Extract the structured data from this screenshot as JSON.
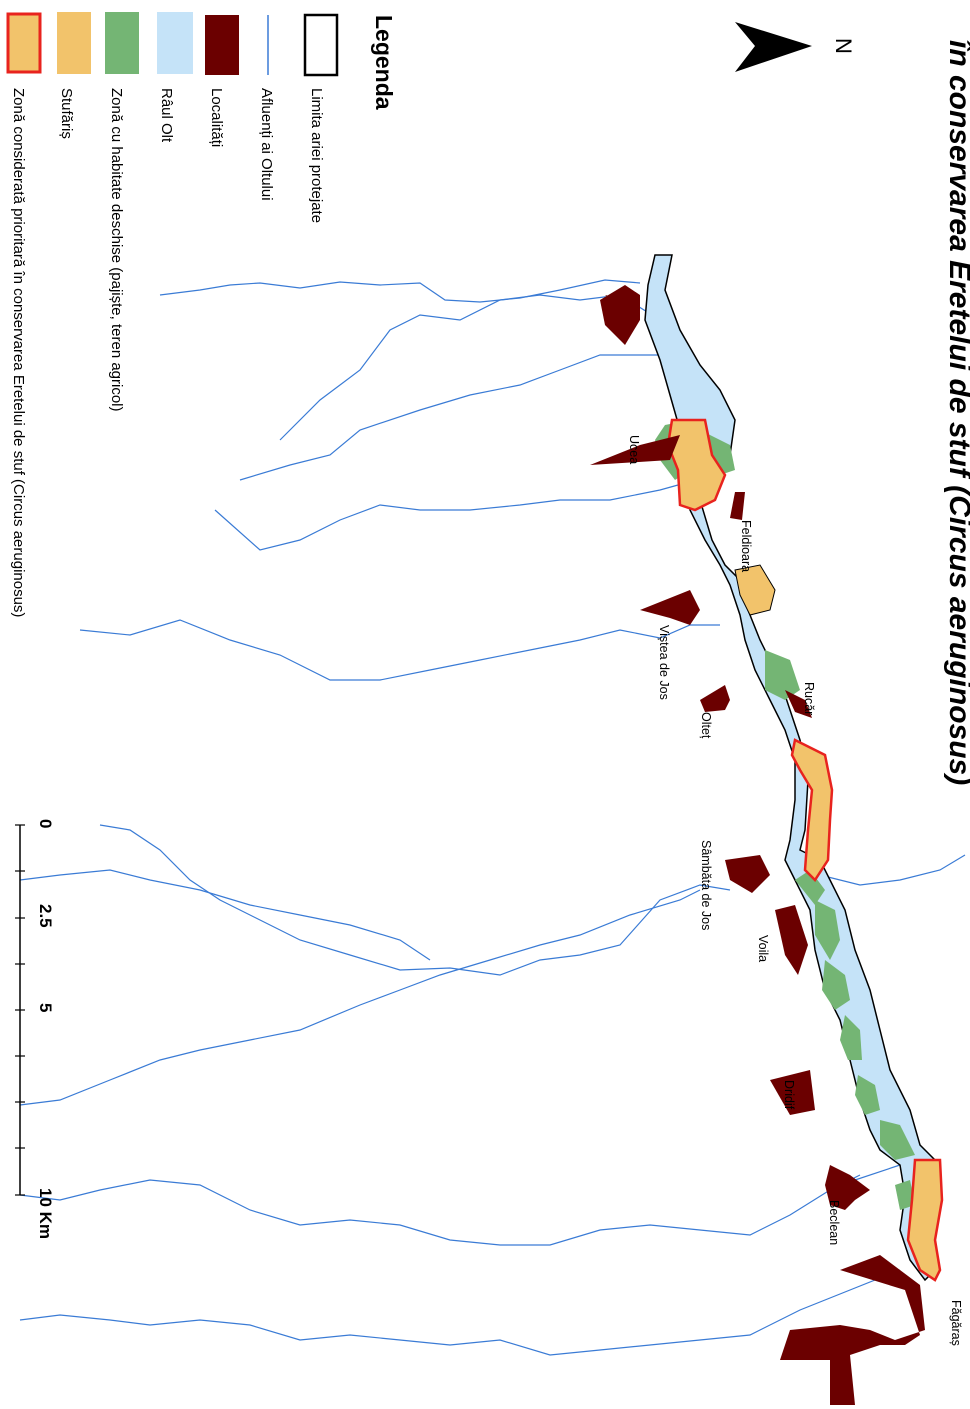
{
  "title": "în conservarea Eretelui de stuf (Circus aeruginosus)",
  "north_label": "N",
  "legend": {
    "title": "Legenda",
    "items": [
      {
        "label": "Limita ariei protejate",
        "icon": "outline-box",
        "fill": "#ffffff",
        "stroke": "#000000"
      },
      {
        "label": "Afluenți ai Oltului",
        "icon": "line",
        "stroke": "#3a7bd5"
      },
      {
        "label": "Localități",
        "icon": "box",
        "fill": "#6b0000"
      },
      {
        "label": "Râul Olt",
        "icon": "box",
        "fill": "#c5e3f8"
      },
      {
        "label": "Zonă cu habitate deschise (pajiște, teren agricol)",
        "icon": "box",
        "fill": "#74b574"
      },
      {
        "label": "Stufăriș",
        "icon": "box",
        "fill": "#f2c36b"
      },
      {
        "label": "Zonă considerată prioritară în conservarea Eretelui de stuf (Circus aeruginosus)",
        "icon": "box-red-outline",
        "fill": "#f2c36b",
        "stroke": "#e8231e"
      }
    ]
  },
  "localities": [
    "Ucea",
    "Feldioara",
    "Viștea de Jos",
    "Rucăr",
    "Olteț",
    "Sâmbăta de Jos",
    "Voila",
    "Dridif",
    "Beclean",
    "Făgăraș"
  ],
  "scale_bar": {
    "ticks": [
      "0",
      "2.5",
      "5",
      "10 Km"
    ]
  },
  "colors": {
    "river": "#c5e3f8",
    "tributary": "#3a7bd5",
    "locality": "#6b0000",
    "open_habitat": "#74b574",
    "reed": "#f2c36b",
    "priority_outline": "#e8231e"
  }
}
